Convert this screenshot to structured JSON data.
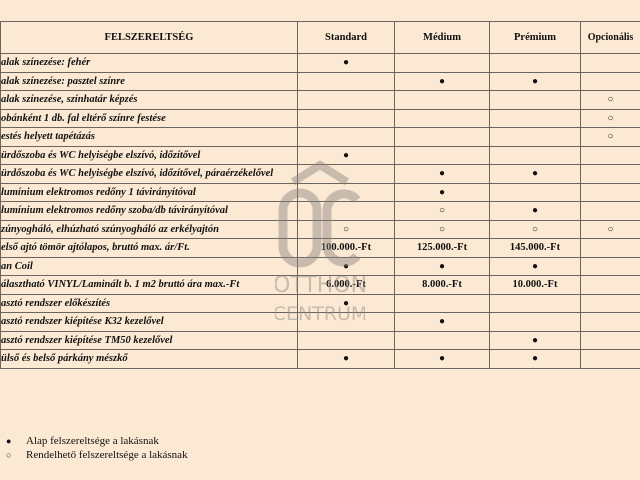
{
  "table": {
    "headers": [
      "FELSZERELTSÉG",
      "Standard",
      "Médium",
      "Prémium",
      "Opcionális"
    ],
    "rows": [
      {
        "label": "alak színezése: fehér",
        "values": [
          "●",
          "",
          "",
          ""
        ]
      },
      {
        "label": "alak színezése: pasztel színre",
        "values": [
          "",
          "●",
          "●",
          ""
        ]
      },
      {
        "label": "alak színezése, színhatár képzés",
        "values": [
          "",
          "",
          "",
          "○"
        ]
      },
      {
        "label": "obánként 1 db. fal eltérő színre festése",
        "values": [
          "",
          "",
          "",
          "○"
        ]
      },
      {
        "label": "estés helyett tapétázás",
        "values": [
          "",
          "",
          "",
          "○"
        ]
      },
      {
        "label": "ürdőszoba és WC helyiségbe elszívó, időzítővel",
        "values": [
          "●",
          "",
          "",
          ""
        ]
      },
      {
        "label": "ürdőszoba és WC helyiségbe elszívó, időzítővel, páraérzékelővel",
        "values": [
          "",
          "●",
          "●",
          ""
        ]
      },
      {
        "label": "lumínium elektromos redőny 1 távirányítóval",
        "values": [
          "",
          "●",
          "",
          ""
        ]
      },
      {
        "label": "lumínium elektromos redőny szoba/db távirányítóval",
        "values": [
          "",
          "○",
          "●",
          ""
        ]
      },
      {
        "label": "zúnyogháló, elhúzható szúnyogháló az erkélyajtón",
        "values": [
          "○",
          "○",
          "○",
          "○"
        ]
      },
      {
        "label": "első ajtó tömör ajtólapos, bruttó max. ár/Ft.",
        "values": [
          "100.000.-Ft",
          "125.000.-Ft",
          "145.000.-Ft",
          ""
        ]
      },
      {
        "label": "an Coil",
        "values": [
          "●",
          "●",
          "●",
          ""
        ]
      },
      {
        "label": "álasztható VINYL/Laminált b. 1 m2 bruttó ára max.-Ft",
        "values": [
          "6.000.-Ft",
          "8.000.-Ft",
          "10.000.-Ft",
          ""
        ]
      },
      {
        "label": "asztó rendszer előkészítés",
        "values": [
          "●",
          "",
          "",
          ""
        ]
      },
      {
        "label": "asztó rendszer kiépítése K32 kezelővel",
        "values": [
          "",
          "●",
          "",
          ""
        ]
      },
      {
        "label": "asztó rendszer kiépítése TM50 kezelővel",
        "values": [
          "",
          "",
          "●",
          ""
        ]
      },
      {
        "label": "ülső és belső párkány mészkő",
        "values": [
          "●",
          "●",
          "●",
          ""
        ]
      }
    ]
  },
  "legend": [
    {
      "symbol": "●",
      "text": "Alap felszereltsége a lakásnak"
    },
    {
      "symbol": "○",
      "text": "Rendelhető felszereltsége a lakásnak"
    }
  ],
  "watermark": {
    "logo_letters": "OC",
    "line1": "OTTHON",
    "line2": "CENTRUM",
    "color": "#8a8580"
  }
}
